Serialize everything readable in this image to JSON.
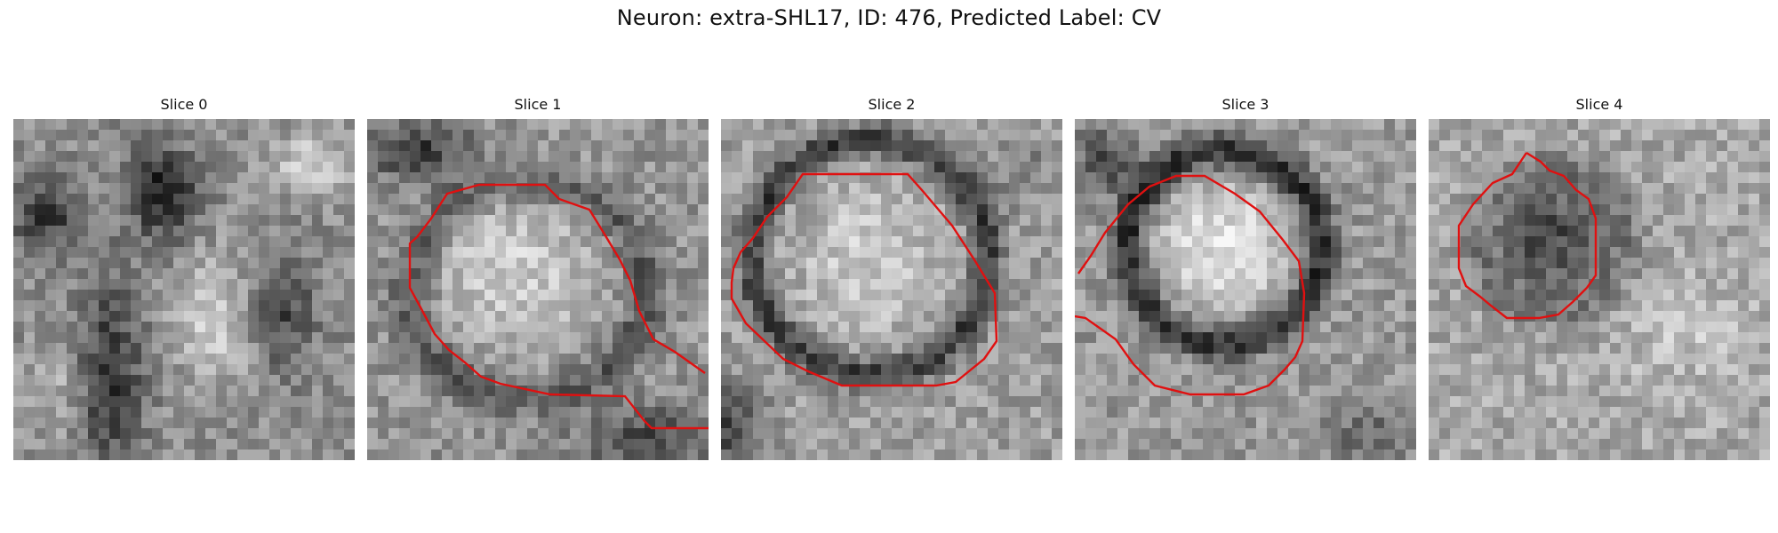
{
  "title": "Neuron: extra-SHL17, ID: 476, Predicted Label: CV",
  "overlay_color": "#e01010",
  "panels": [
    {
      "label": "Slice 0"
    },
    {
      "label": "Slice 1"
    },
    {
      "label": "Slice 2"
    },
    {
      "label": "Slice 3"
    },
    {
      "label": "Slice 4"
    }
  ]
}
